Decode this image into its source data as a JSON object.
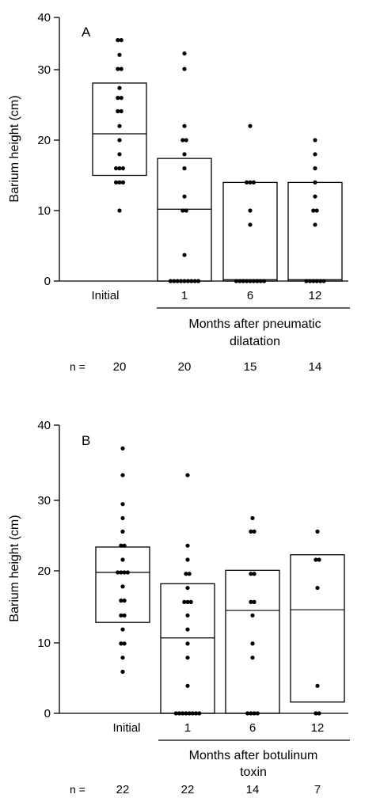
{
  "chart_data": [
    {
      "type": "scatter",
      "panel_label": "A",
      "ylabel": "Barium height (cm)",
      "ylim": [
        0,
        40
      ],
      "yticks": [
        "0",
        "10",
        "20",
        "30",
        "40"
      ],
      "categories": [
        "Initial",
        "1",
        "6",
        "12"
      ],
      "xgroup_label_lines": [
        "Months after pneumatic",
        "dilatation"
      ],
      "n_prefix": "n =",
      "n_values": [
        "20",
        "20",
        "15",
        "14"
      ],
      "groups": [
        {
          "category": "Initial",
          "box": [
            15,
            28.1
          ],
          "median": 20.9,
          "points": [
            34.2,
            34.2,
            32.1,
            30.1,
            30.1,
            27.4,
            26.0,
            26.0,
            24.1,
            24.1,
            22.0,
            20.0,
            18.0,
            16.0,
            16.0,
            16.0,
            14.0,
            14.0,
            14.0,
            10.0
          ]
        },
        {
          "category": "1",
          "box": [
            0,
            17.4
          ],
          "median": 10.2,
          "points": [
            32.3,
            30.1,
            22.0,
            20.0,
            20.0,
            18.0,
            16.0,
            12.0,
            10.0,
            10.0,
            3.7,
            0,
            0,
            0,
            0,
            0,
            0,
            0,
            0,
            0
          ]
        },
        {
          "category": "6",
          "box": [
            0,
            14.0
          ],
          "median": 0.2,
          "points": [
            22.0,
            14.0,
            14.0,
            14.0,
            10.0,
            8.0,
            0,
            0,
            0,
            0,
            0,
            0,
            0,
            0,
            0
          ]
        },
        {
          "category": "12",
          "box": [
            0,
            14.0
          ],
          "median": 0.2,
          "points": [
            20.0,
            18.0,
            16.0,
            14.0,
            12.0,
            10.0,
            10.0,
            8.0,
            0,
            0,
            0,
            0,
            0,
            0
          ]
        }
      ]
    },
    {
      "type": "scatter",
      "panel_label": "B",
      "ylabel": "Barium height (cm)",
      "ylim": [
        0,
        40
      ],
      "yticks": [
        "0",
        "10",
        "20",
        "30",
        "40"
      ],
      "categories": [
        "Initial",
        "1",
        "6",
        "12"
      ],
      "xgroup_label_lines": [
        "Months after botulinum",
        "toxin"
      ],
      "n_prefix": "n =",
      "n_values": [
        "22",
        "22",
        "14",
        "7"
      ],
      "groups": [
        {
          "category": "Initial",
          "box": [
            12.9,
            23.6
          ],
          "median": 20.0,
          "points": [
            37.6,
            33.8,
            29.7,
            27.7,
            25.8,
            23.8,
            23.8,
            21.8,
            20.0,
            20.0,
            20.0,
            18.0,
            16.0,
            16.0,
            13.9,
            13.9,
            11.9,
            9.9,
            9.9,
            7.9,
            5.9,
            20.0
          ]
        },
        {
          "category": "1",
          "box": [
            0,
            18.4
          ],
          "median": 10.7,
          "points": [
            33.8,
            23.8,
            21.8,
            19.8,
            19.8,
            17.8,
            15.8,
            15.8,
            15.8,
            13.9,
            11.9,
            9.9,
            7.9,
            3.9,
            0,
            0,
            0,
            0,
            0,
            0,
            0,
            0
          ]
        },
        {
          "category": "6",
          "box": [
            0,
            20.3
          ],
          "median": 14.6,
          "points": [
            27.7,
            25.8,
            25.8,
            19.8,
            19.8,
            15.8,
            15.8,
            13.9,
            9.9,
            7.9,
            0,
            0,
            0,
            0
          ]
        },
        {
          "category": "12",
          "box": [
            1.6,
            22.5
          ],
          "median": 14.7,
          "points": [
            25.8,
            21.8,
            21.8,
            17.8,
            3.9,
            0,
            0
          ]
        }
      ]
    }
  ]
}
